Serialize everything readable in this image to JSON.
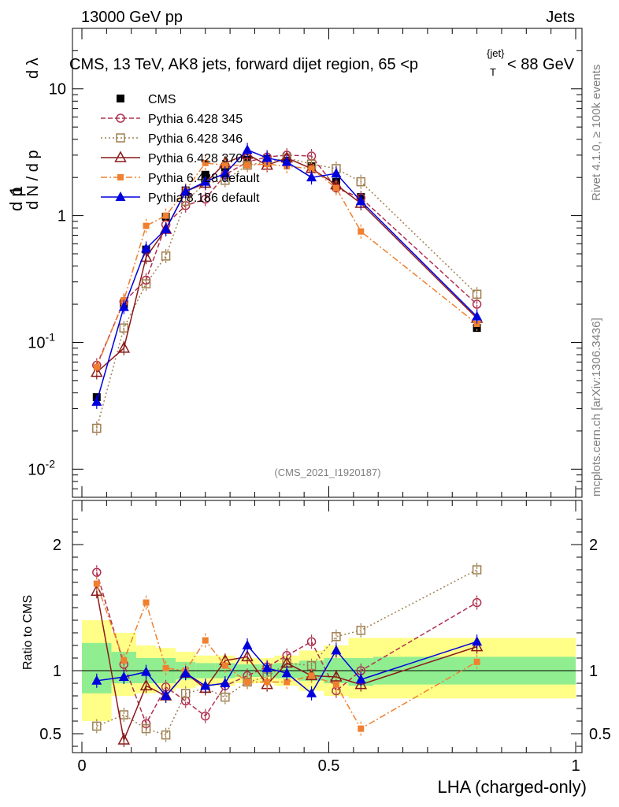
{
  "header": {
    "energy_label": "13000 GeV pp",
    "category_label": "Jets",
    "analysis_title": "CMS, 13 TeV, AK8 jets, forward dijet region, 65 <p {jet} T< 88 GeV",
    "title_prefix": "CMS, 13 TeV, AK8 jets, forward dijet region, 65 <p",
    "title_sup": "{jet}",
    "title_sub": "T",
    "title_suffix": "< 88 GeV",
    "analysis_id": "(CMS_2021_I1920187)",
    "side_label_top": "Rivet 4.1.0, ≥ 100k events",
    "side_label_bottom": "mcplots.cern.ch [arXiv:1306.3436]"
  },
  "chart_data": [
    {
      "panel": "main",
      "type": "line",
      "yscale": "log",
      "ylim": [
        0.006,
        30
      ],
      "xlim": [
        -0.02,
        1.0
      ],
      "ylabel": "1/N dN/dp_T dλ",
      "ylabel_parts": [
        "1",
        "N",
        "d N / d p",
        "d",
        "N",
        "d p",
        "d λ"
      ],
      "yticks": [
        {
          "value": 0.01,
          "base": "10",
          "exp": "-2"
        },
        {
          "value": 0.1,
          "base": "10",
          "exp": "-1"
        },
        {
          "value": 1,
          "base": "1",
          "exp": ""
        },
        {
          "value": 10,
          "base": "10",
          "exp": ""
        }
      ],
      "x": [
        0.03,
        0.085,
        0.13,
        0.17,
        0.21,
        0.25,
        0.29,
        0.335,
        0.375,
        0.415,
        0.465,
        0.515,
        0.565,
        0.8
      ],
      "series": [
        {
          "name": "CMS",
          "color": "#000000",
          "marker": "filled-square",
          "line": "none",
          "values": [
            0.037,
            0.2,
            0.54,
            0.98,
            1.58,
            2.1,
            2.4,
            2.75,
            2.8,
            2.7,
            2.45,
            1.85,
            1.4,
            0.13
          ]
        },
        {
          "name": "Pythia 6.428 345",
          "color": "#b03050",
          "marker": "open-circle",
          "line": "dashed",
          "values": [
            0.066,
            0.21,
            0.31,
            0.85,
            1.2,
            1.35,
            2.1,
            2.65,
            2.9,
            3.0,
            2.95,
            1.65,
            1.38,
            0.2
          ]
        },
        {
          "name": "Pythia 6.428 346",
          "color": "#a08050",
          "marker": "open-square",
          "line": "dotted",
          "values": [
            0.021,
            0.13,
            0.29,
            0.48,
            1.3,
            1.8,
            1.9,
            2.5,
            2.65,
            2.85,
            2.55,
            2.35,
            1.85,
            0.24
          ]
        },
        {
          "name": "Pythia 6.428 370",
          "color": "#8b1a1a",
          "marker": "open-triangle",
          "line": "solid",
          "values": [
            0.058,
            0.09,
            0.47,
            0.78,
            1.55,
            1.8,
            2.6,
            3.05,
            2.5,
            2.85,
            2.35,
            1.75,
            1.25,
            0.155
          ]
        },
        {
          "name": "Pythia 6.428 default",
          "color": "#f08030",
          "marker": "filled-square-small",
          "line": "dashdot",
          "values": [
            0.064,
            0.215,
            0.83,
            1.0,
            1.58,
            2.6,
            2.5,
            2.5,
            2.55,
            2.45,
            2.35,
            1.65,
            0.75,
            0.14
          ]
        },
        {
          "name": "Pythia 8.186 default",
          "color": "#0000dd",
          "marker": "filled-triangle",
          "line": "solid",
          "values": [
            0.034,
            0.19,
            0.55,
            0.78,
            1.55,
            1.85,
            2.15,
            3.3,
            2.85,
            2.65,
            2.0,
            2.15,
            1.3,
            0.16
          ]
        }
      ],
      "legend": [
        "CMS",
        "Pythia 6.428 345",
        "Pythia 6.428 346",
        "Pythia 6.428 370",
        "Pythia 6.428 default",
        "Pythia 8.186 default"
      ]
    },
    {
      "panel": "ratio",
      "type": "line",
      "ylim": [
        0.35,
        2.35
      ],
      "ylabel": "Ratio to CMS",
      "yticks": [
        {
          "value": 0.5,
          "label": "0.5"
        },
        {
          "value": 1,
          "label": "1"
        },
        {
          "value": 2,
          "label": "2"
        }
      ],
      "xlabel": "LHA (charged-only)",
      "xticks": [
        {
          "value": 0,
          "label": "0"
        },
        {
          "value": 0.5,
          "label": "0.5"
        },
        {
          "value": 1,
          "label": "1"
        }
      ],
      "x": [
        0.03,
        0.085,
        0.13,
        0.17,
        0.21,
        0.25,
        0.29,
        0.335,
        0.375,
        0.415,
        0.465,
        0.515,
        0.565,
        0.8
      ],
      "bands": {
        "bin_edges": [
          0.0,
          0.06,
          0.11,
          0.15,
          0.19,
          0.23,
          0.27,
          0.31,
          0.36,
          0.39,
          0.44,
          0.49,
          0.54,
          0.59,
          1.0
        ],
        "green_low": [
          0.82,
          0.9,
          0.9,
          0.9,
          0.93,
          0.94,
          0.94,
          0.95,
          0.95,
          0.94,
          0.92,
          0.9,
          0.88,
          0.89
        ],
        "green_high": [
          1.22,
          1.15,
          1.1,
          1.1,
          1.07,
          1.06,
          1.06,
          1.05,
          1.05,
          1.06,
          1.08,
          1.1,
          1.1,
          1.11
        ],
        "yellow_low": [
          0.6,
          0.8,
          0.82,
          0.84,
          0.86,
          0.88,
          0.88,
          0.9,
          0.9,
          0.88,
          0.84,
          0.8,
          0.78,
          0.78
        ],
        "yellow_high": [
          1.4,
          1.3,
          1.2,
          1.18,
          1.15,
          1.12,
          1.12,
          1.1,
          1.1,
          1.12,
          1.16,
          1.2,
          1.26,
          1.26
        ],
        "green_color": "#90ee90",
        "yellow_color": "#ffff88"
      },
      "series": [
        {
          "name": "Pythia 6.428 345",
          "color": "#b03050",
          "marker": "open-circle",
          "line": "dashed",
          "values": [
            1.78,
            1.05,
            0.58,
            0.87,
            0.76,
            0.64,
            0.88,
            0.96,
            1.03,
            1.12,
            1.23,
            0.84,
            1.0,
            1.54
          ]
        },
        {
          "name": "Pythia 6.428 346",
          "color": "#a08050",
          "marker": "open-square",
          "line": "dotted",
          "values": [
            0.56,
            0.65,
            0.54,
            0.49,
            0.82,
            0.86,
            0.79,
            0.91,
            0.95,
            1.06,
            1.04,
            1.27,
            1.32,
            1.8
          ]
        },
        {
          "name": "Pythia 6.428 370",
          "color": "#8b1a1a",
          "marker": "open-triangle",
          "line": "solid",
          "values": [
            1.63,
            0.45,
            0.88,
            0.8,
            0.98,
            0.86,
            1.08,
            1.11,
            0.89,
            1.06,
            0.96,
            0.95,
            0.89,
            1.19
          ]
        },
        {
          "name": "Pythia 6.428 default",
          "color": "#f08030",
          "marker": "filled-square-small",
          "line": "dashdot",
          "values": [
            1.69,
            1.08,
            1.54,
            1.02,
            1.0,
            1.24,
            1.04,
            0.91,
            0.91,
            0.91,
            0.96,
            0.89,
            0.54,
            1.07
          ]
        },
        {
          "name": "Pythia 8.186 default",
          "color": "#0000dd",
          "marker": "filled-triangle",
          "line": "solid",
          "values": [
            0.92,
            0.95,
            0.99,
            0.8,
            0.98,
            0.88,
            0.9,
            1.2,
            1.02,
            0.98,
            0.82,
            1.16,
            0.93,
            1.23
          ]
        }
      ]
    }
  ]
}
